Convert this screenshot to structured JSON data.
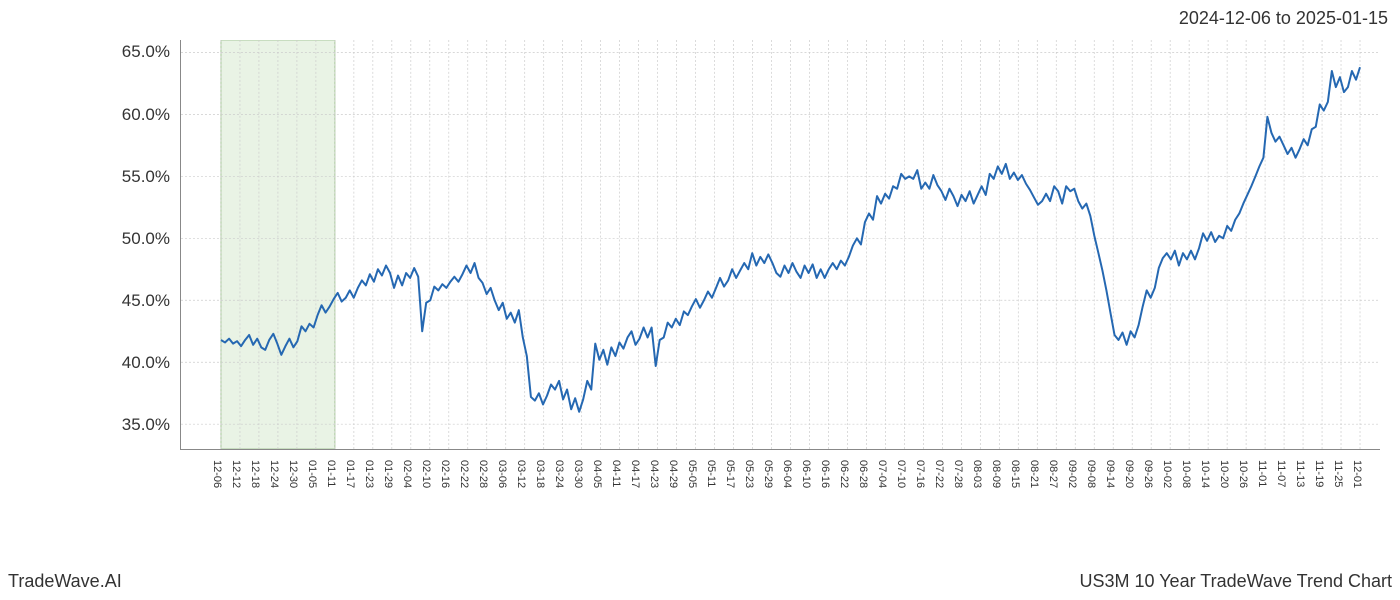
{
  "header": {
    "date_range": "2024-12-06 to 2025-01-15"
  },
  "footer": {
    "left": "TradeWave.AI",
    "right": "US3M 10 Year TradeWave Trend Chart"
  },
  "chart": {
    "type": "line",
    "background_color": "#ffffff",
    "grid_color": "#cccccc",
    "grid_dash": "2,2",
    "axis_color": "#888888",
    "line_color": "#2568b2",
    "line_width": 2,
    "highlight_band": {
      "fill": "#dfeeda",
      "stroke": "#a8c79a",
      "start_index": 0,
      "end_index": 6
    },
    "y_axis": {
      "min": 33,
      "max": 66,
      "ticks": [
        35,
        40,
        45,
        50,
        55,
        60,
        65
      ],
      "tick_labels": [
        "35.0%",
        "40.0%",
        "45.0%",
        "50.0%",
        "55.0%",
        "60.0%",
        "65.0%"
      ],
      "label_fontsize": 17,
      "label_color": "#333333"
    },
    "x_axis": {
      "tick_labels": [
        "12-06",
        "12-12",
        "12-18",
        "12-24",
        "12-30",
        "01-05",
        "01-11",
        "01-17",
        "01-23",
        "01-29",
        "02-04",
        "02-10",
        "02-16",
        "02-22",
        "02-28",
        "03-06",
        "03-12",
        "03-18",
        "03-24",
        "03-30",
        "04-05",
        "04-11",
        "04-17",
        "04-23",
        "04-29",
        "05-05",
        "05-11",
        "05-17",
        "05-23",
        "05-29",
        "06-04",
        "06-10",
        "06-16",
        "06-22",
        "06-28",
        "07-04",
        "07-10",
        "07-16",
        "07-22",
        "07-28",
        "08-03",
        "08-09",
        "08-15",
        "08-21",
        "08-27",
        "09-02",
        "09-08",
        "09-14",
        "09-20",
        "09-26",
        "10-02",
        "10-08",
        "10-14",
        "10-20",
        "10-26",
        "11-01",
        "11-07",
        "11-13",
        "11-19",
        "11-25",
        "12-01"
      ],
      "label_fontsize": 11,
      "label_color": "#333333",
      "rotation": 90
    },
    "series": [
      41.8,
      41.6,
      41.9,
      41.5,
      41.7,
      41.3,
      41.8,
      42.2,
      41.4,
      41.9,
      41.2,
      41.0,
      41.8,
      42.3,
      41.5,
      40.6,
      41.3,
      41.9,
      41.2,
      41.7,
      42.9,
      42.5,
      43.1,
      42.8,
      43.8,
      44.6,
      44.0,
      44.5,
      45.1,
      45.6,
      44.9,
      45.2,
      45.8,
      45.2,
      46.0,
      46.6,
      46.2,
      47.1,
      46.5,
      47.5,
      47.0,
      47.8,
      47.2,
      46.0,
      47.0,
      46.2,
      47.2,
      46.8,
      47.6,
      46.9,
      42.5,
      44.8,
      45.0,
      46.1,
      45.8,
      46.3,
      46.0,
      46.5,
      46.9,
      46.5,
      47.1,
      47.8,
      47.2,
      48.0,
      46.8,
      46.4,
      45.5,
      46.0,
      45.0,
      44.2,
      44.8,
      43.5,
      44.0,
      43.2,
      44.2,
      42.0,
      40.5,
      37.2,
      36.9,
      37.5,
      36.6,
      37.3,
      38.2,
      37.8,
      38.5,
      37.0,
      37.8,
      36.2,
      37.1,
      36.0,
      37.0,
      38.5,
      37.8,
      41.5,
      40.2,
      41.0,
      39.8,
      41.2,
      40.5,
      41.6,
      41.1,
      42.0,
      42.5,
      41.4,
      41.9,
      42.8,
      42.0,
      42.8,
      39.7,
      41.8,
      42.0,
      43.2,
      42.8,
      43.5,
      43.0,
      44.1,
      43.8,
      44.5,
      45.1,
      44.4,
      45.0,
      45.7,
      45.2,
      46.0,
      46.8,
      46.1,
      46.6,
      47.5,
      46.8,
      47.4,
      48.0,
      47.5,
      48.8,
      47.8,
      48.5,
      48.0,
      48.7,
      48.0,
      47.2,
      46.9,
      47.8,
      47.2,
      48.0,
      47.3,
      46.8,
      47.8,
      47.2,
      47.9,
      46.8,
      47.5,
      46.8,
      47.5,
      48.0,
      47.5,
      48.2,
      47.8,
      48.5,
      49.4,
      50.0,
      49.5,
      51.3,
      52.0,
      51.5,
      53.4,
      52.8,
      53.6,
      53.2,
      54.2,
      54.0,
      55.2,
      54.8,
      55.0,
      54.8,
      55.5,
      54.0,
      54.5,
      54.0,
      55.1,
      54.3,
      53.8,
      53.1,
      54.0,
      53.4,
      52.6,
      53.5,
      53.0,
      53.8,
      52.8,
      53.5,
      54.2,
      53.5,
      55.2,
      54.8,
      55.8,
      55.2,
      56.0,
      54.8,
      55.3,
      54.7,
      55.1,
      54.4,
      53.9,
      53.3,
      52.7,
      53.0,
      53.6,
      53.0,
      54.2,
      53.8,
      52.8,
      54.2,
      53.8,
      54.0,
      53.0,
      52.4,
      52.8,
      51.8,
      50.2,
      48.8,
      47.4,
      45.8,
      44.0,
      42.2,
      41.8,
      42.4,
      41.4,
      42.5,
      42.0,
      43.0,
      44.5,
      45.8,
      45.2,
      46.0,
      47.6,
      48.4,
      48.8,
      48.3,
      49.0,
      47.8,
      48.8,
      48.3,
      49.0,
      48.3,
      49.2,
      50.4,
      49.8,
      50.5,
      49.7,
      50.2,
      50.0,
      51.0,
      50.6,
      51.5,
      52.0,
      52.8,
      53.5,
      54.2,
      55.0,
      55.8,
      56.5,
      59.8,
      58.5,
      57.8,
      58.2,
      57.5,
      56.8,
      57.3,
      56.5,
      57.2,
      58.0,
      57.5,
      58.8,
      59.0,
      60.8,
      60.3,
      61.0,
      63.5,
      62.2,
      63.0,
      61.8,
      62.2,
      63.5,
      62.8,
      63.8
    ]
  }
}
